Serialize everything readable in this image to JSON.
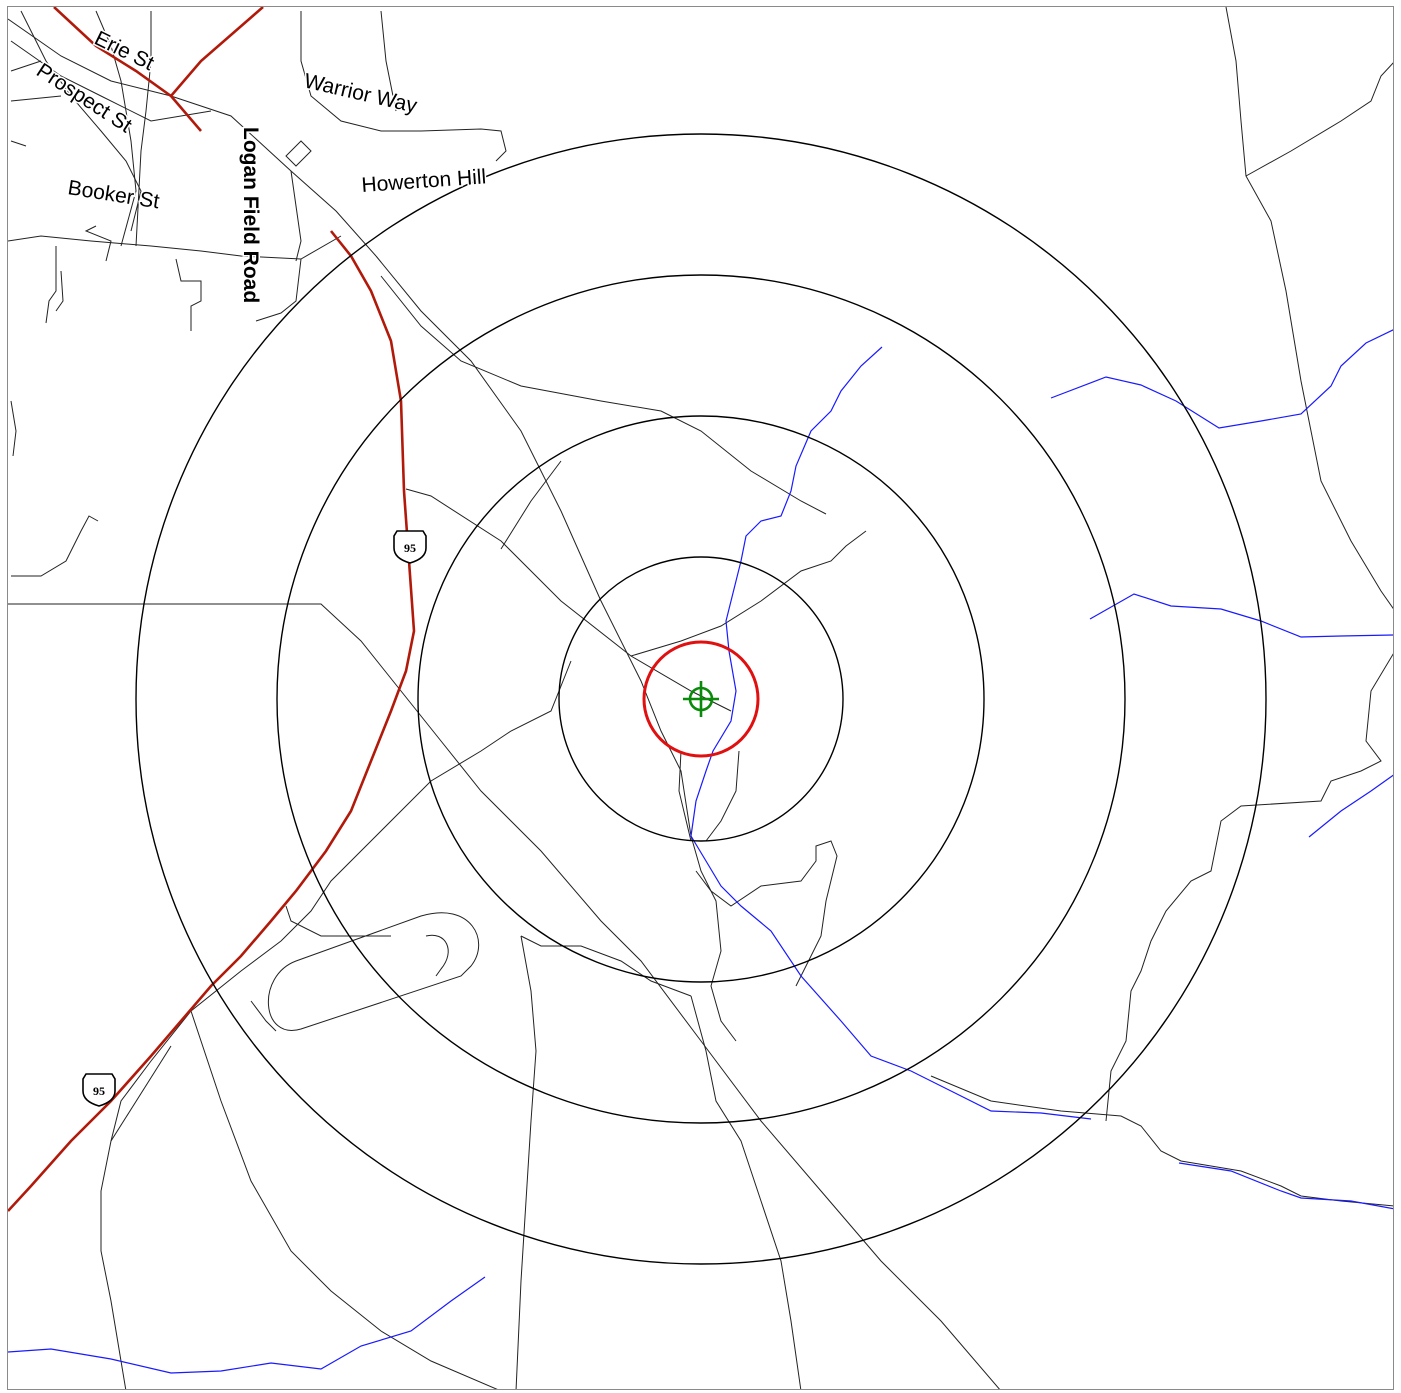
{
  "map": {
    "street_labels": {
      "erie": "Erie St",
      "prospect": "Prospect St",
      "booker": "Booker St",
      "logan": "Logan Field Road",
      "warrior": "Warrior Way",
      "howerton": "Howerton Hill"
    },
    "highway_shields": [
      "95",
      "95"
    ],
    "colors": {
      "highway": "#b11a0a",
      "stream": "#1a1aff",
      "road": "#222222",
      "rings": "#000000",
      "target_ring": "#e01010",
      "crosshair": "#0a8a0a"
    },
    "icons": {
      "target": "crosshair-target-icon",
      "shield": "us-highway-shield-icon"
    }
  }
}
